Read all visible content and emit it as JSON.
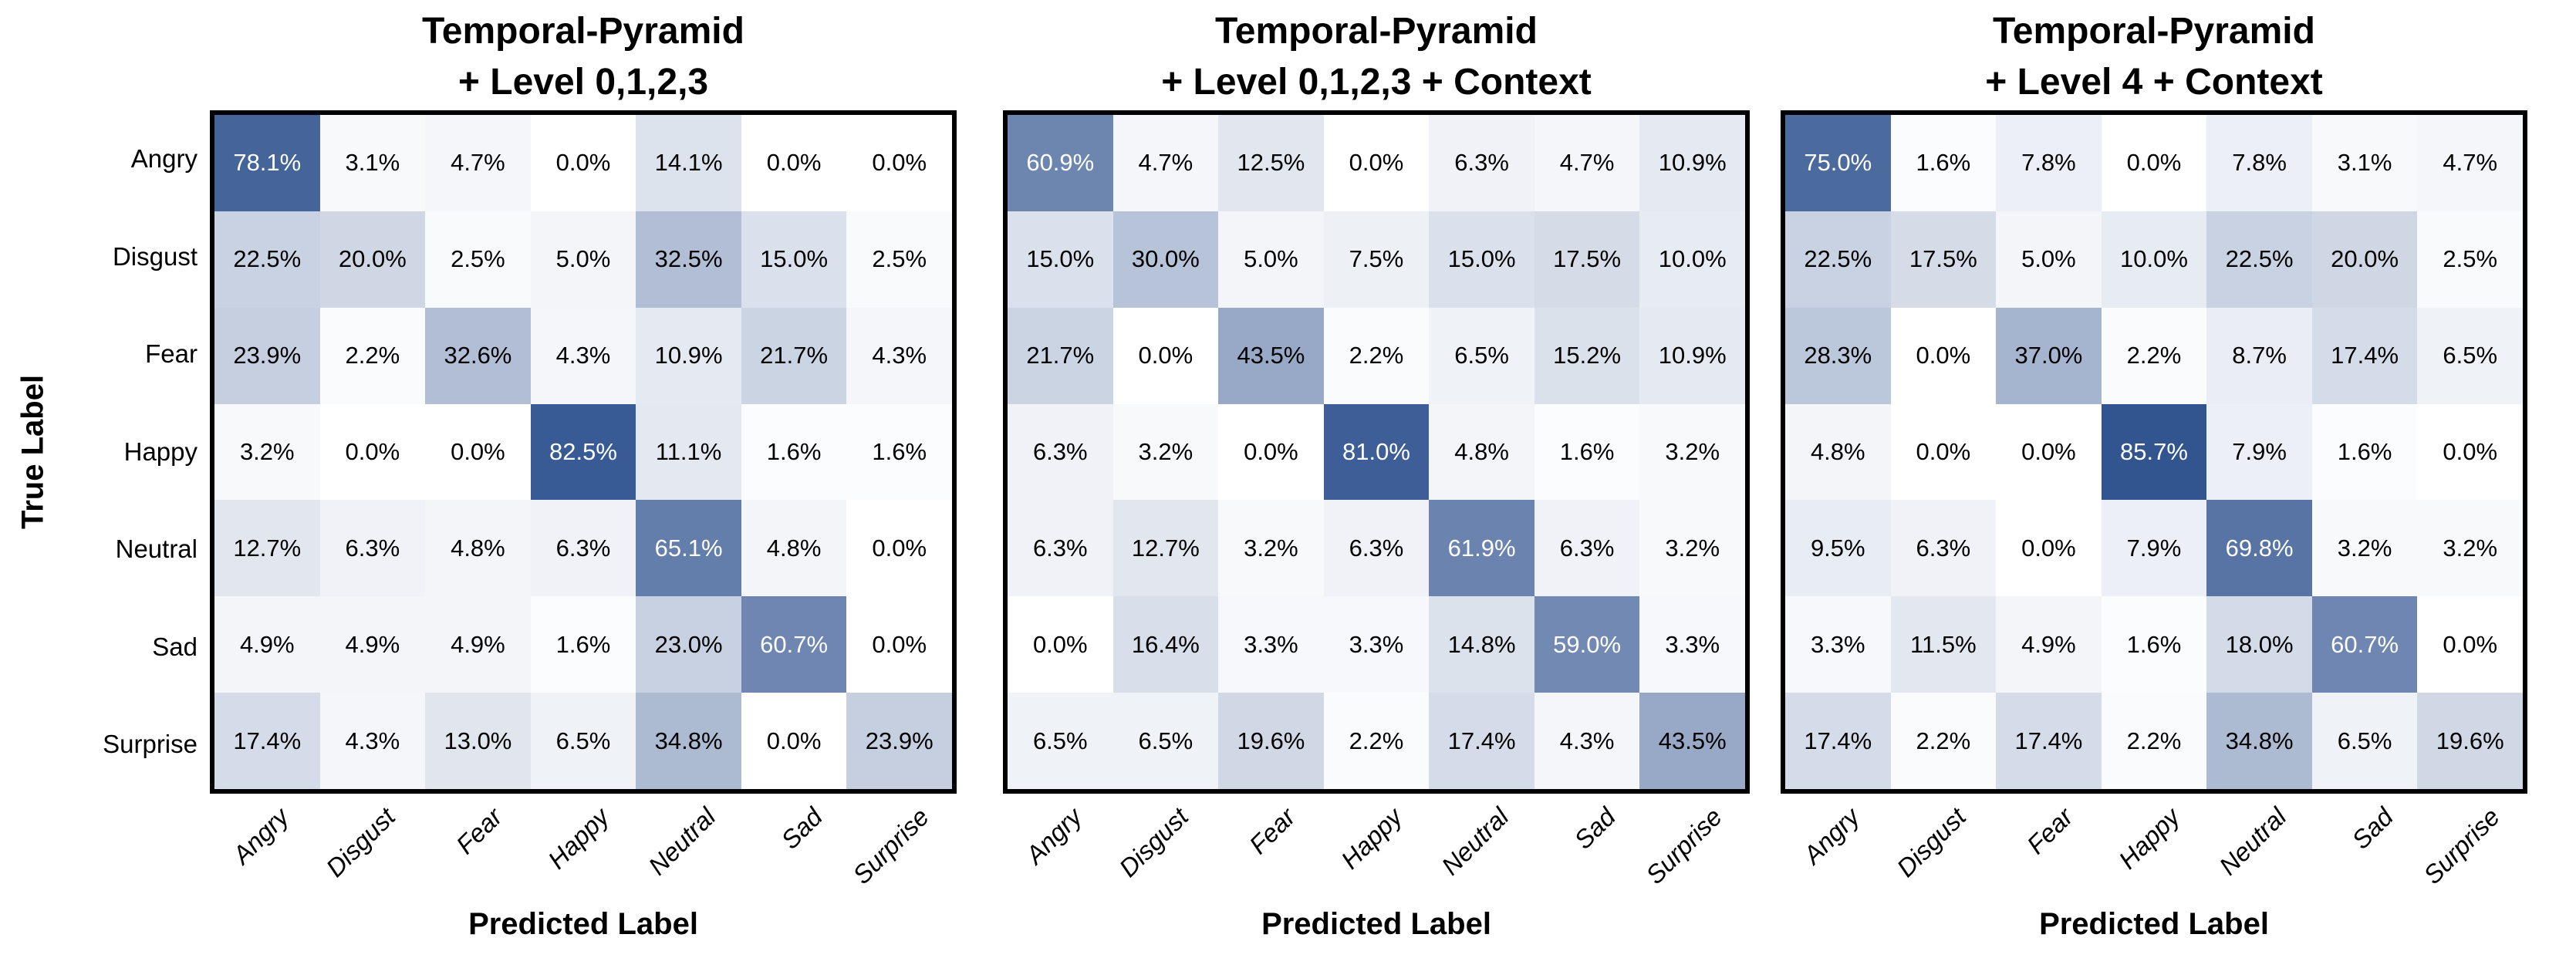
{
  "figure": {
    "y_axis_title": "True Label",
    "x_axis_title": "Predicted Label",
    "emotions": [
      "Angry",
      "Disgust",
      "Fear",
      "Happy",
      "Neutral",
      "Sad",
      "Surprise"
    ],
    "colors": {
      "heat_min": "#FFFFFF",
      "heat_max": "#315490",
      "panel_border": "#000000",
      "text_on_dark": "#FFFFFF",
      "text_on_light": "#000000"
    },
    "color_scale_max_percent": 86,
    "text_white_threshold_percent": 50
  },
  "chart_data": [
    {
      "type": "heatmap",
      "title": "Temporal-Pyramid + Level 0,1,2,3",
      "title_lines": [
        "Temporal-Pyramid",
        "+ Level 0,1,2,3"
      ],
      "xlabel": "Predicted Label",
      "ylabel": "True Label",
      "x_categories": [
        "Angry",
        "Disgust",
        "Fear",
        "Happy",
        "Neutral",
        "Sad",
        "Surprise"
      ],
      "y_categories": [
        "Angry",
        "Disgust",
        "Fear",
        "Happy",
        "Neutral",
        "Sad",
        "Surprise"
      ],
      "values_percent": [
        [
          78.1,
          3.1,
          4.7,
          0.0,
          14.1,
          0.0,
          0.0
        ],
        [
          22.5,
          20.0,
          2.5,
          5.0,
          32.5,
          15.0,
          2.5
        ],
        [
          23.9,
          2.2,
          32.6,
          4.3,
          10.9,
          21.7,
          4.3
        ],
        [
          3.2,
          0.0,
          0.0,
          82.5,
          11.1,
          1.6,
          1.6
        ],
        [
          12.7,
          6.3,
          4.8,
          6.3,
          65.1,
          4.8,
          0.0
        ],
        [
          4.9,
          4.9,
          4.9,
          1.6,
          23.0,
          60.7,
          0.0
        ],
        [
          17.4,
          4.3,
          13.0,
          6.5,
          34.8,
          0.0,
          23.9
        ]
      ]
    },
    {
      "type": "heatmap",
      "title": "Temporal-Pyramid + Level 0,1,2,3 + Context",
      "title_lines": [
        "Temporal-Pyramid",
        "+ Level 0,1,2,3 + Context"
      ],
      "xlabel": "Predicted Label",
      "ylabel": "True Label",
      "x_categories": [
        "Angry",
        "Disgust",
        "Fear",
        "Happy",
        "Neutral",
        "Sad",
        "Surprise"
      ],
      "y_categories": [
        "Angry",
        "Disgust",
        "Fear",
        "Happy",
        "Neutral",
        "Sad",
        "Surprise"
      ],
      "values_percent": [
        [
          60.9,
          4.7,
          12.5,
          0.0,
          6.3,
          4.7,
          10.9
        ],
        [
          15.0,
          30.0,
          5.0,
          7.5,
          15.0,
          17.5,
          10.0
        ],
        [
          21.7,
          0.0,
          43.5,
          2.2,
          6.5,
          15.2,
          10.9
        ],
        [
          6.3,
          3.2,
          0.0,
          81.0,
          4.8,
          1.6,
          3.2
        ],
        [
          6.3,
          12.7,
          3.2,
          6.3,
          61.9,
          6.3,
          3.2
        ],
        [
          0.0,
          16.4,
          3.3,
          3.3,
          14.8,
          59.0,
          3.3
        ],
        [
          6.5,
          6.5,
          19.6,
          2.2,
          17.4,
          4.3,
          43.5
        ]
      ]
    },
    {
      "type": "heatmap",
      "title": "Temporal-Pyramid + Level 4 + Context",
      "title_lines": [
        "Temporal-Pyramid",
        "+ Level 4 + Context"
      ],
      "xlabel": "Predicted Label",
      "ylabel": "True Label",
      "x_categories": [
        "Angry",
        "Disgust",
        "Fear",
        "Happy",
        "Neutral",
        "Sad",
        "Surprise"
      ],
      "y_categories": [
        "Angry",
        "Disgust",
        "Fear",
        "Happy",
        "Neutral",
        "Sad",
        "Surprise"
      ],
      "values_percent": [
        [
          75.0,
          1.6,
          7.8,
          0.0,
          7.8,
          3.1,
          4.7
        ],
        [
          22.5,
          17.5,
          5.0,
          10.0,
          22.5,
          20.0,
          2.5
        ],
        [
          28.3,
          0.0,
          37.0,
          2.2,
          8.7,
          17.4,
          6.5
        ],
        [
          4.8,
          0.0,
          0.0,
          85.7,
          7.9,
          1.6,
          0.0
        ],
        [
          9.5,
          6.3,
          0.0,
          7.9,
          69.8,
          3.2,
          3.2
        ],
        [
          3.3,
          11.5,
          4.9,
          1.6,
          18.0,
          60.7,
          0.0
        ],
        [
          17.4,
          2.2,
          17.4,
          2.2,
          34.8,
          6.5,
          19.6
        ]
      ]
    }
  ]
}
